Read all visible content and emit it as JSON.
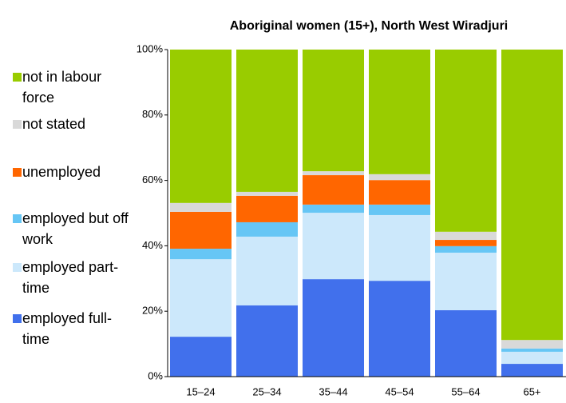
{
  "chart_data": {
    "type": "stacked-bar",
    "title": "Aboriginal women (15+), North West Wiradjuri",
    "categories": [
      "15–24",
      "25–34",
      "35–44",
      "45–54",
      "55–64",
      "65+"
    ],
    "series": [
      {
        "name": "employed full-time",
        "color": "#4170ec",
        "values": [
          12.2,
          21.8,
          29.8,
          29.3,
          20.3,
          3.9
        ]
      },
      {
        "name": "employed part-time",
        "color": "#cce8fb",
        "values": [
          23.7,
          21.0,
          20.3,
          20.1,
          17.6,
          3.7
        ]
      },
      {
        "name": "employed but off work",
        "color": "#66c6f5",
        "values": [
          3.2,
          4.4,
          2.5,
          3.2,
          2.0,
          1.0
        ]
      },
      {
        "name": "unemployed",
        "color": "#ff6600",
        "values": [
          11.3,
          8.1,
          9.0,
          7.5,
          1.9,
          0
        ]
      },
      {
        "name": "not stated",
        "color": "#d9d9d9",
        "values": [
          2.7,
          1.2,
          1.2,
          1.8,
          2.5,
          2.6
        ]
      },
      {
        "name": "not in labour force",
        "color": "#99cc00",
        "values": [
          46.9,
          43.5,
          37.2,
          38.1,
          55.7,
          88.8
        ]
      }
    ],
    "ylim": [
      0,
      100
    ],
    "yticks": [
      {
        "value": 0,
        "label": "0%"
      },
      {
        "value": 20,
        "label": "20%"
      },
      {
        "value": 40,
        "label": "40%"
      },
      {
        "value": 60,
        "label": "60%"
      },
      {
        "value": 80,
        "label": "80%"
      },
      {
        "value": 100,
        "label": "100%"
      }
    ],
    "legend": "left"
  }
}
